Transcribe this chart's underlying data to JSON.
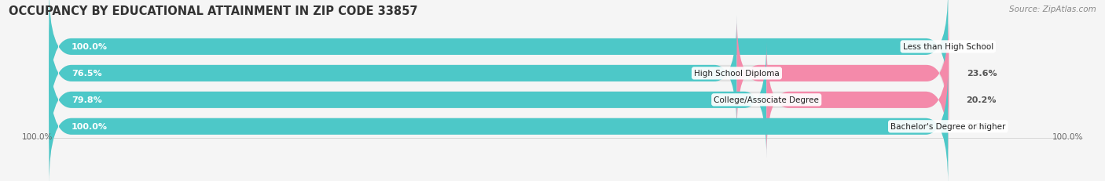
{
  "title": "OCCUPANCY BY EDUCATIONAL ATTAINMENT IN ZIP CODE 33857",
  "source": "Source: ZipAtlas.com",
  "categories": [
    "Less than High School",
    "High School Diploma",
    "College/Associate Degree",
    "Bachelor's Degree or higher"
  ],
  "owner_pct": [
    100.0,
    76.5,
    79.8,
    100.0
  ],
  "renter_pct": [
    0.0,
    23.6,
    20.2,
    0.0
  ],
  "owner_color": "#4dc8c8",
  "renter_color": "#f48aaa",
  "bar_bg_color": "#e0e0e0",
  "fig_bg_color": "#f5f5f5",
  "bar_height": 0.62,
  "bar_gap": 1.15,
  "title_fontsize": 10.5,
  "label_fontsize": 8.0,
  "tick_fontsize": 8.0,
  "source_fontsize": 7.5,
  "owner_label_color": "white",
  "renter_label_color": "#555555",
  "cat_label_fontsize": 7.5
}
